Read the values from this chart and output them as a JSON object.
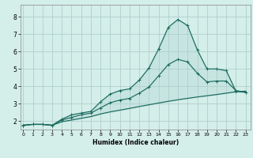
{
  "xlabel": "Humidex (Indice chaleur)",
  "bg_color": "#d4eeea",
  "line_color": "#1a6b5e",
  "grid_color": "#aed0cc",
  "x_ticks": [
    0,
    1,
    2,
    3,
    4,
    5,
    6,
    7,
    8,
    9,
    10,
    11,
    12,
    13,
    14,
    15,
    16,
    17,
    18,
    19,
    20,
    21,
    22,
    23
  ],
  "y_ticks": [
    2,
    3,
    4,
    5,
    6,
    7,
    8
  ],
  "xlim": [
    -0.3,
    23.5
  ],
  "ylim": [
    1.5,
    8.7
  ],
  "curve_upper_x": [
    0,
    1,
    2,
    3,
    4,
    5,
    6,
    7,
    8,
    9,
    10,
    11,
    12,
    13,
    14,
    15,
    16,
    17,
    18,
    19,
    20,
    21,
    22,
    23
  ],
  "curve_upper_y": [
    1.75,
    1.8,
    1.8,
    1.75,
    2.1,
    2.35,
    2.45,
    2.55,
    3.1,
    3.55,
    3.75,
    3.85,
    4.35,
    5.05,
    6.15,
    7.4,
    7.85,
    7.5,
    6.1,
    5.0,
    5.0,
    4.9,
    3.7,
    3.65
  ],
  "curve_mid_x": [
    0,
    1,
    2,
    3,
    4,
    5,
    6,
    7,
    8,
    9,
    10,
    11,
    12,
    13,
    14,
    15,
    16,
    17,
    18,
    19,
    20,
    21,
    22,
    23
  ],
  "curve_mid_y": [
    1.75,
    1.8,
    1.8,
    1.75,
    2.05,
    2.2,
    2.35,
    2.45,
    2.75,
    3.05,
    3.2,
    3.3,
    3.6,
    3.95,
    4.6,
    5.25,
    5.55,
    5.4,
    4.75,
    4.25,
    4.3,
    4.3,
    3.75,
    3.65
  ],
  "curve_lower_x": [
    0,
    1,
    2,
    3,
    4,
    5,
    6,
    7,
    8,
    9,
    10,
    11,
    12,
    13,
    14,
    15,
    16,
    17,
    18,
    19,
    20,
    21,
    22,
    23
  ],
  "curve_lower_y": [
    1.75,
    1.8,
    1.8,
    1.75,
    1.95,
    2.05,
    2.15,
    2.25,
    2.4,
    2.52,
    2.62,
    2.72,
    2.83,
    2.93,
    3.03,
    3.13,
    3.22,
    3.3,
    3.38,
    3.45,
    3.52,
    3.6,
    3.68,
    3.72
  ]
}
